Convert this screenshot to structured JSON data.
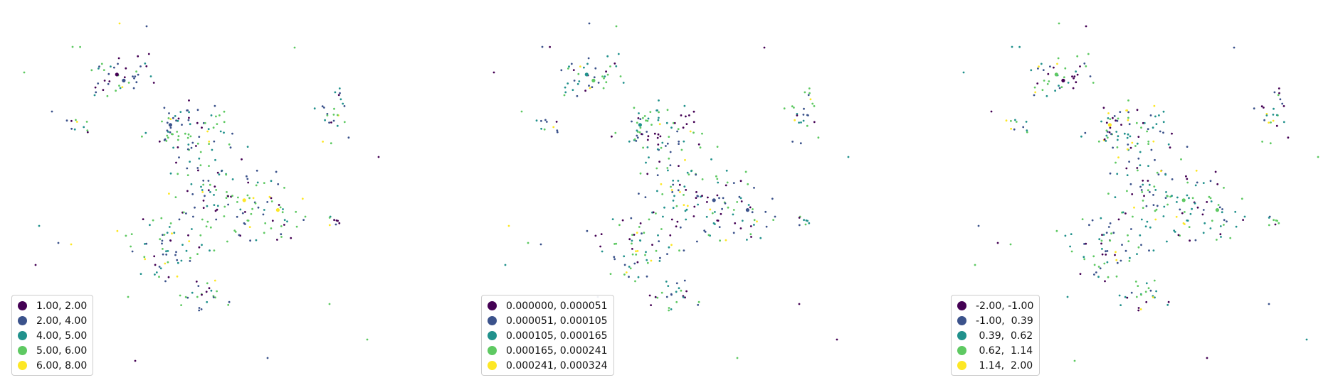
{
  "colors": {
    "background": "#ffffff",
    "viridis": [
      "#440154",
      "#3b528b",
      "#21918c",
      "#5ec962",
      "#fde725"
    ]
  },
  "maps": [
    {
      "legend": {
        "items": [
          {
            "label": "1.00, 2.00",
            "color": "#440154"
          },
          {
            "label": "2.00, 4.00",
            "color": "#3b528b"
          },
          {
            "label": "4.00, 5.00",
            "color": "#21918c"
          },
          {
            "label": "5.00, 6.00",
            "color": "#5ec962"
          },
          {
            "label": "6.00, 8.00",
            "color": "#fde725"
          }
        ]
      }
    },
    {
      "legend": {
        "items": [
          {
            "label": "0.000000, 0.000051",
            "color": "#440154"
          },
          {
            "label": "0.000051, 0.000105",
            "color": "#3b528b"
          },
          {
            "label": "0.000105, 0.000165",
            "color": "#21918c"
          },
          {
            "label": "0.000165, 0.000241",
            "color": "#5ec962"
          },
          {
            "label": "0.000241, 0.000324",
            "color": "#fde725"
          }
        ]
      }
    },
    {
      "legend": {
        "items": [
          {
            "label": "-2.00, -1.00",
            "color": "#440154"
          },
          {
            "label": "-1.00,  0.39",
            "color": "#3b528b"
          },
          {
            "label": " 0.39,  0.62",
            "color": "#21918c"
          },
          {
            "label": " 0.62,  1.14",
            "color": "#5ec962"
          },
          {
            "label": " 1.14,  2.00",
            "color": "#fde725"
          }
        ]
      }
    }
  ]
}
